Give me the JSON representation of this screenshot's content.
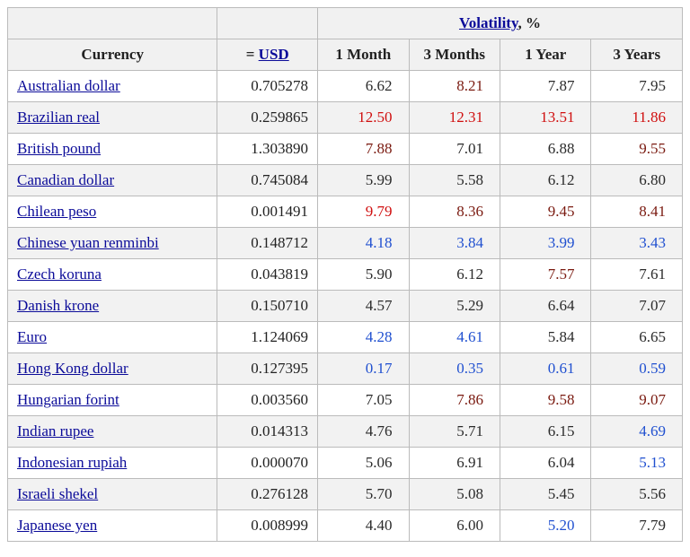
{
  "table": {
    "header": {
      "currency": "Currency",
      "usd_prefix": "= ",
      "usd_link": "USD",
      "volatility_link": "Volatility",
      "volatility_suffix": ", %",
      "periods": [
        "1 Month",
        "3 Months",
        "1 Year",
        "3 Years"
      ]
    },
    "col_widths": {
      "currency": 230,
      "usd": 110,
      "vol": 100
    },
    "colors": {
      "header_bg": "#f1f1f1",
      "row_even_bg": "#f2f2f2",
      "row_odd_bg": "#ffffff",
      "border": "#bbbbbb",
      "link": "#0b0b99",
      "vol_neutral": "#2b2b2b",
      "vol_blue": "#2050d0",
      "vol_darkred": "#7a1a10",
      "vol_red": "#d01010"
    },
    "rows": [
      {
        "currency": "Australian dollar",
        "usd": "0.705278",
        "vol": [
          {
            "v": "6.62",
            "c": "neutral"
          },
          {
            "v": "8.21",
            "c": "darkred"
          },
          {
            "v": "7.87",
            "c": "neutral"
          },
          {
            "v": "7.95",
            "c": "neutral"
          }
        ]
      },
      {
        "currency": "Brazilian real",
        "usd": "0.259865",
        "vol": [
          {
            "v": "12.50",
            "c": "red"
          },
          {
            "v": "12.31",
            "c": "red"
          },
          {
            "v": "13.51",
            "c": "red"
          },
          {
            "v": "11.86",
            "c": "red"
          }
        ]
      },
      {
        "currency": "British pound",
        "usd": "1.303890",
        "vol": [
          {
            "v": "7.88",
            "c": "darkred"
          },
          {
            "v": "7.01",
            "c": "neutral"
          },
          {
            "v": "6.88",
            "c": "neutral"
          },
          {
            "v": "9.55",
            "c": "darkred"
          }
        ]
      },
      {
        "currency": "Canadian dollar",
        "usd": "0.745084",
        "vol": [
          {
            "v": "5.99",
            "c": "neutral"
          },
          {
            "v": "5.58",
            "c": "neutral"
          },
          {
            "v": "6.12",
            "c": "neutral"
          },
          {
            "v": "6.80",
            "c": "neutral"
          }
        ]
      },
      {
        "currency": "Chilean peso",
        "usd": "0.001491",
        "vol": [
          {
            "v": "9.79",
            "c": "red"
          },
          {
            "v": "8.36",
            "c": "darkred"
          },
          {
            "v": "9.45",
            "c": "darkred"
          },
          {
            "v": "8.41",
            "c": "darkred"
          }
        ]
      },
      {
        "currency": "Chinese yuan renminbi",
        "usd": "0.148712",
        "vol": [
          {
            "v": "4.18",
            "c": "blue"
          },
          {
            "v": "3.84",
            "c": "blue"
          },
          {
            "v": "3.99",
            "c": "blue"
          },
          {
            "v": "3.43",
            "c": "blue"
          }
        ]
      },
      {
        "currency": "Czech koruna",
        "usd": "0.043819",
        "vol": [
          {
            "v": "5.90",
            "c": "neutral"
          },
          {
            "v": "6.12",
            "c": "neutral"
          },
          {
            "v": "7.57",
            "c": "darkred"
          },
          {
            "v": "7.61",
            "c": "neutral"
          }
        ]
      },
      {
        "currency": "Danish krone",
        "usd": "0.150710",
        "vol": [
          {
            "v": "4.57",
            "c": "neutral"
          },
          {
            "v": "5.29",
            "c": "neutral"
          },
          {
            "v": "6.64",
            "c": "neutral"
          },
          {
            "v": "7.07",
            "c": "neutral"
          }
        ]
      },
      {
        "currency": "Euro",
        "usd": "1.124069",
        "vol": [
          {
            "v": "4.28",
            "c": "blue"
          },
          {
            "v": "4.61",
            "c": "blue"
          },
          {
            "v": "5.84",
            "c": "neutral"
          },
          {
            "v": "6.65",
            "c": "neutral"
          }
        ]
      },
      {
        "currency": "Hong Kong dollar",
        "usd": "0.127395",
        "vol": [
          {
            "v": "0.17",
            "c": "blue"
          },
          {
            "v": "0.35",
            "c": "blue"
          },
          {
            "v": "0.61",
            "c": "blue"
          },
          {
            "v": "0.59",
            "c": "blue"
          }
        ]
      },
      {
        "currency": "Hungarian forint",
        "usd": "0.003560",
        "vol": [
          {
            "v": "7.05",
            "c": "neutral"
          },
          {
            "v": "7.86",
            "c": "darkred"
          },
          {
            "v": "9.58",
            "c": "darkred"
          },
          {
            "v": "9.07",
            "c": "darkred"
          }
        ]
      },
      {
        "currency": "Indian rupee",
        "usd": "0.014313",
        "vol": [
          {
            "v": "4.76",
            "c": "neutral"
          },
          {
            "v": "5.71",
            "c": "neutral"
          },
          {
            "v": "6.15",
            "c": "neutral"
          },
          {
            "v": "4.69",
            "c": "blue"
          }
        ]
      },
      {
        "currency": "Indonesian rupiah",
        "usd": "0.000070",
        "vol": [
          {
            "v": "5.06",
            "c": "neutral"
          },
          {
            "v": "6.91",
            "c": "neutral"
          },
          {
            "v": "6.04",
            "c": "neutral"
          },
          {
            "v": "5.13",
            "c": "blue"
          }
        ]
      },
      {
        "currency": "Israeli shekel",
        "usd": "0.276128",
        "vol": [
          {
            "v": "5.70",
            "c": "neutral"
          },
          {
            "v": "5.08",
            "c": "neutral"
          },
          {
            "v": "5.45",
            "c": "neutral"
          },
          {
            "v": "5.56",
            "c": "neutral"
          }
        ]
      },
      {
        "currency": "Japanese yen",
        "usd": "0.008999",
        "vol": [
          {
            "v": "4.40",
            "c": "neutral"
          },
          {
            "v": "6.00",
            "c": "neutral"
          },
          {
            "v": "5.20",
            "c": "blue"
          },
          {
            "v": "7.79",
            "c": "neutral"
          }
        ]
      }
    ]
  }
}
